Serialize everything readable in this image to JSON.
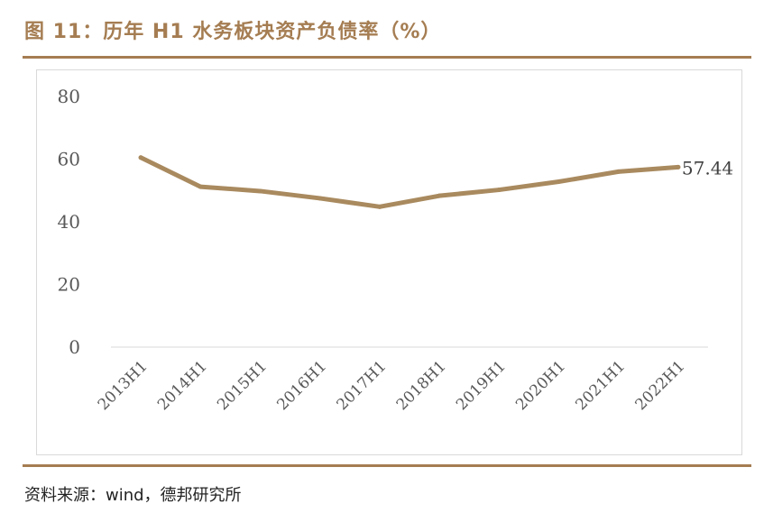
{
  "title": "图 11：历年 H1 水务板块资产负债率（%）",
  "source": "资料来源：wind，德邦研究所",
  "colors": {
    "accent": "#a57d52",
    "line": "#a98a5f",
    "axis": "#d9d9d9",
    "tick_text": "#595959"
  },
  "chart_data": {
    "type": "line",
    "categories": [
      "2013H1",
      "2014H1",
      "2015H1",
      "2016H1",
      "2017H1",
      "2018H1",
      "2019H1",
      "2020H1",
      "2021H1",
      "2022H1"
    ],
    "series": [
      {
        "values": [
          60.5,
          51.2,
          49.8,
          47.5,
          44.8,
          48.3,
          50.2,
          52.8,
          56.0,
          57.44
        ]
      }
    ],
    "yticks": [
      0,
      20,
      40,
      60,
      80
    ],
    "ylim": [
      0,
      80
    ],
    "data_labels": [
      {
        "index": 9,
        "text": "57.44"
      }
    ],
    "grid": false,
    "legend": "none"
  }
}
